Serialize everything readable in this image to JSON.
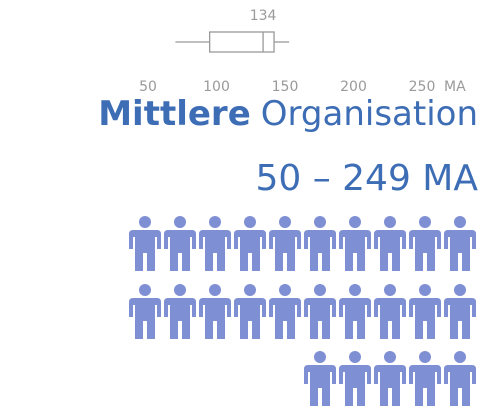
{
  "heading": {
    "bold": "Mittlere",
    "rest": "Organisation"
  },
  "subtitle": "50 – 249 MA",
  "chart_data": {
    "type": "box",
    "x_label": "MA",
    "xlim": [
      50,
      250
    ],
    "xticks": [
      50,
      100,
      150,
      200,
      250
    ],
    "whisker_low": 70,
    "q1": 95,
    "median": 134,
    "q3": 142,
    "whisker_high": 153,
    "color": "#999999"
  }
}
